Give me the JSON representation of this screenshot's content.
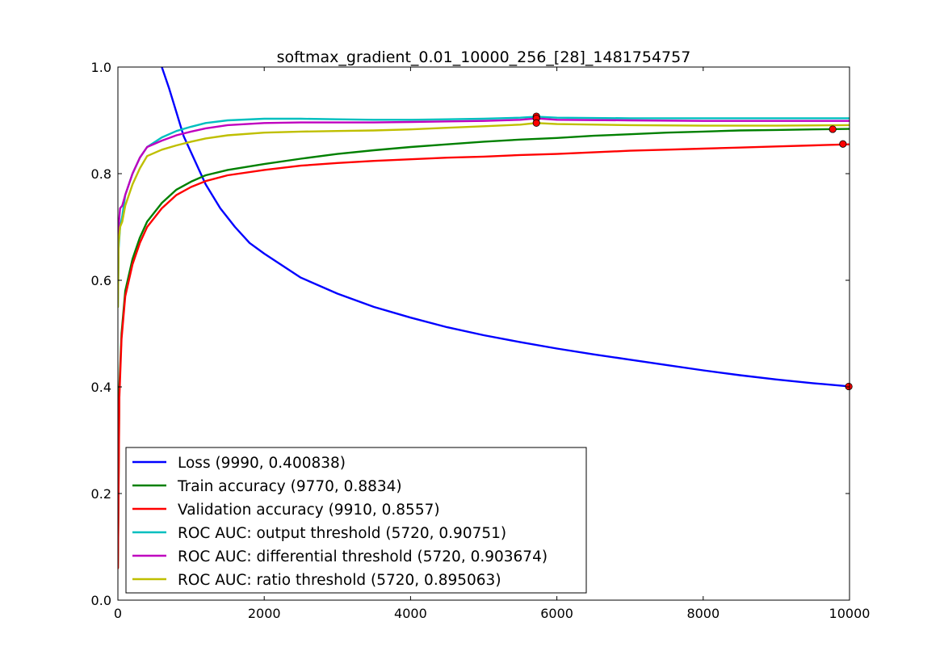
{
  "chart_data": {
    "type": "line",
    "title": "softmax_gradient_0.01_10000_256_[28]_1481754757",
    "xlabel": "",
    "ylabel": "",
    "xlim": [
      0,
      10000
    ],
    "ylim": [
      0.0,
      1.0
    ],
    "xticks": [
      "0",
      "2000",
      "4000",
      "6000",
      "8000",
      "10000"
    ],
    "yticks": [
      "0.0",
      "0.2",
      "0.4",
      "0.6",
      "0.8",
      "1.0"
    ],
    "grid": false,
    "legend_position": "lower-left",
    "series": [
      {
        "name": "Loss (9990, 0.400838)",
        "color": "#0000ff",
        "x": [
          600,
          700,
          800,
          900,
          1000,
          1200,
          1400,
          1600,
          1800,
          2000,
          2500,
          3000,
          3500,
          4000,
          4500,
          5000,
          5500,
          6000,
          6500,
          7000,
          7500,
          8000,
          8500,
          9000,
          9500,
          9990
        ],
        "values": [
          1.0,
          0.96,
          0.915,
          0.87,
          0.84,
          0.78,
          0.735,
          0.7,
          0.67,
          0.65,
          0.605,
          0.575,
          0.55,
          0.53,
          0.512,
          0.497,
          0.484,
          0.472,
          0.461,
          0.451,
          0.441,
          0.431,
          0.422,
          0.414,
          0.407,
          0.401
        ],
        "marker": {
          "x": 9990,
          "y": 0.400838
        }
      },
      {
        "name": "Train accuracy (9770, 0.8834)",
        "color": "#008000",
        "x": [
          0,
          20,
          50,
          100,
          200,
          300,
          400,
          600,
          800,
          1000,
          1200,
          1500,
          2000,
          2500,
          3000,
          3500,
          4000,
          4500,
          5000,
          5500,
          6000,
          6500,
          7000,
          7500,
          8000,
          8500,
          9000,
          9500,
          10000
        ],
        "values": [
          0.06,
          0.4,
          0.5,
          0.58,
          0.64,
          0.68,
          0.71,
          0.745,
          0.77,
          0.785,
          0.797,
          0.807,
          0.818,
          0.828,
          0.837,
          0.844,
          0.85,
          0.855,
          0.86,
          0.864,
          0.867,
          0.871,
          0.874,
          0.877,
          0.879,
          0.881,
          0.882,
          0.883,
          0.884
        ],
        "marker": {
          "x": 9770,
          "y": 0.8834
        }
      },
      {
        "name": "Validation accuracy (9910, 0.8557)",
        "color": "#ff0000",
        "x": [
          0,
          20,
          50,
          100,
          200,
          300,
          400,
          600,
          800,
          1000,
          1200,
          1500,
          2000,
          2500,
          3000,
          3500,
          4000,
          4500,
          5000,
          5500,
          6000,
          6500,
          7000,
          7500,
          8000,
          8500,
          9000,
          9500,
          10000
        ],
        "values": [
          0.06,
          0.38,
          0.49,
          0.57,
          0.63,
          0.67,
          0.7,
          0.735,
          0.76,
          0.775,
          0.786,
          0.797,
          0.807,
          0.815,
          0.82,
          0.824,
          0.827,
          0.83,
          0.832,
          0.835,
          0.837,
          0.84,
          0.843,
          0.845,
          0.847,
          0.849,
          0.851,
          0.853,
          0.855
        ],
        "marker": {
          "x": 9910,
          "y": 0.8557
        }
      },
      {
        "name": "ROC AUC: output threshold (5720, 0.90751)",
        "color": "#00bfbf",
        "x": [
          0,
          10,
          30,
          60,
          100,
          200,
          300,
          400,
          600,
          800,
          1000,
          1200,
          1500,
          2000,
          2500,
          3000,
          3500,
          4000,
          4500,
          5000,
          5500,
          5720,
          6000,
          7000,
          8000,
          9000,
          10000
        ],
        "values": [
          0.55,
          0.66,
          0.7,
          0.72,
          0.76,
          0.8,
          0.83,
          0.85,
          0.868,
          0.88,
          0.888,
          0.895,
          0.9,
          0.903,
          0.903,
          0.902,
          0.901,
          0.901,
          0.902,
          0.903,
          0.905,
          0.907,
          0.905,
          0.904,
          0.904,
          0.904,
          0.904
        ],
        "marker": {
          "x": 5720,
          "y": 0.90751
        }
      },
      {
        "name": "ROC AUC: differential threshold (5720, 0.903674)",
        "color": "#bf00bf",
        "x": [
          0,
          10,
          30,
          60,
          100,
          200,
          300,
          400,
          600,
          800,
          1000,
          1200,
          1500,
          2000,
          2500,
          3000,
          3500,
          4000,
          4500,
          5000,
          5500,
          5720,
          6000,
          7000,
          8000,
          9000,
          10000
        ],
        "values": [
          0.6,
          0.7,
          0.735,
          0.74,
          0.76,
          0.8,
          0.83,
          0.85,
          0.862,
          0.872,
          0.879,
          0.885,
          0.891,
          0.895,
          0.896,
          0.896,
          0.896,
          0.897,
          0.898,
          0.899,
          0.901,
          0.9037,
          0.901,
          0.9,
          0.899,
          0.899,
          0.899
        ],
        "marker": {
          "x": 5720,
          "y": 0.903674
        }
      },
      {
        "name": "ROC AUC: ratio threshold (5720, 0.895063)",
        "color": "#bfbf00",
        "x": [
          0,
          10,
          30,
          60,
          100,
          200,
          300,
          400,
          600,
          800,
          1000,
          1200,
          1500,
          2000,
          2500,
          3000,
          3500,
          4000,
          4500,
          5000,
          5500,
          5720,
          6000,
          7000,
          8000,
          9000,
          10000
        ],
        "values": [
          0.55,
          0.67,
          0.7,
          0.71,
          0.74,
          0.78,
          0.81,
          0.833,
          0.845,
          0.853,
          0.86,
          0.866,
          0.872,
          0.877,
          0.879,
          0.88,
          0.881,
          0.883,
          0.886,
          0.889,
          0.892,
          0.895,
          0.893,
          0.891,
          0.89,
          0.89,
          0.891
        ],
        "marker": {
          "x": 5720,
          "y": 0.895063
        }
      }
    ]
  }
}
